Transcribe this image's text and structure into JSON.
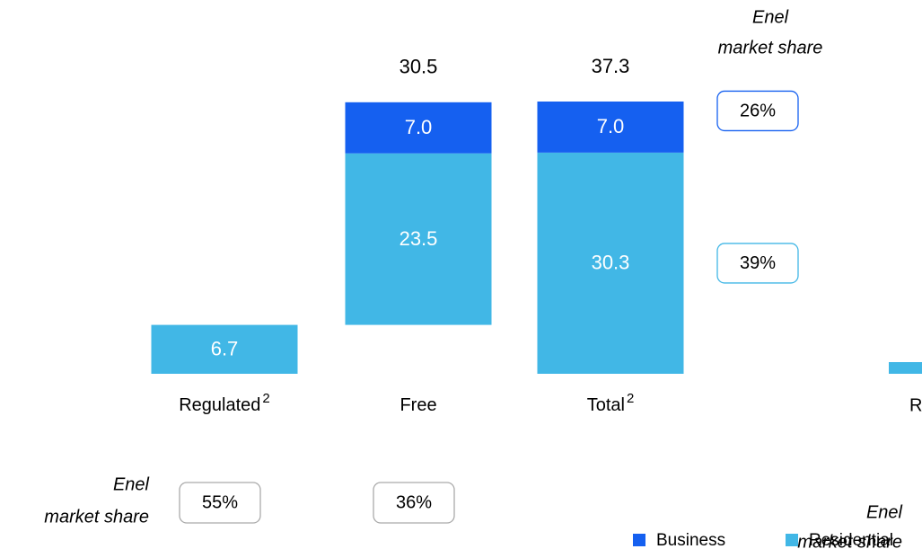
{
  "chart_data": {
    "type": "waterfall",
    "categories": [
      "Regulated",
      "Free",
      "Total"
    ],
    "category_notes": [
      "2",
      null,
      "2"
    ],
    "series": [
      {
        "name": "Business",
        "color": "#1560f0",
        "values": [
          null,
          7.0,
          7.0
        ],
        "value_labels": [
          null,
          "7.0",
          "7.0"
        ]
      },
      {
        "name": "Residential",
        "color": "#41b7e6",
        "values": [
          6.7,
          23.5,
          30.3
        ]
      }
    ],
    "totals": [
      null,
      30.5,
      37.3
    ],
    "share_label": [
      "Enel",
      "market share"
    ],
    "category_shares": {
      "values": [
        55,
        36,
        null
      ],
      "value_labels": [
        "55%",
        "36%",
        null
      ]
    },
    "series_shares": {
      "values": [
        26,
        39
      ],
      "value_labels": [
        "26%",
        "39%"
      ]
    },
    "annotations": [
      "R"
    ]
  }
}
